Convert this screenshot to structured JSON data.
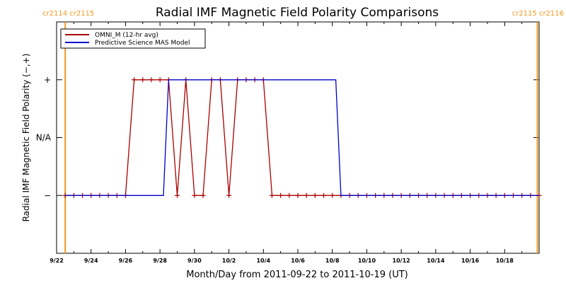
{
  "chart_data": {
    "type": "line",
    "title": "Radial IMF Magnetic Field Polarity Comparisons",
    "xlabel": "Month/Day from 2011-09-22 to 2011-10-19 (UT)",
    "ylabel": "Radial IMF Magnetic Field Polarity (−,+)",
    "x_range_days": [
      0,
      28
    ],
    "ylim": [
      -2,
      2
    ],
    "y_ticks": [
      {
        "value": 1,
        "label": "+"
      },
      {
        "value": 0,
        "label": "N/A"
      },
      {
        "value": -1,
        "label": "−"
      }
    ],
    "x_ticks": [
      {
        "day": 0,
        "label": "9/22"
      },
      {
        "day": 2,
        "label": "9/24"
      },
      {
        "day": 4,
        "label": "9/26"
      },
      {
        "day": 6,
        "label": "9/28"
      },
      {
        "day": 8,
        "label": "9/30"
      },
      {
        "day": 10,
        "label": "10/2"
      },
      {
        "day": 12,
        "label": "10/4"
      },
      {
        "day": 14,
        "label": "10/6"
      },
      {
        "day": 16,
        "label": "10/8"
      },
      {
        "day": 18,
        "label": "10/10"
      },
      {
        "day": 20,
        "label": "10/12"
      },
      {
        "day": 22,
        "label": "10/14"
      },
      {
        "day": 24,
        "label": "10/16"
      },
      {
        "day": 26,
        "label": "10/18"
      }
    ],
    "carrington_markers": [
      {
        "day": 0.5,
        "label": "cr2114 cr2115",
        "color": "#ee9922"
      },
      {
        "day": 27.9,
        "label": "cr2115 cr2116",
        "color": "#ee9922"
      }
    ],
    "legend_position": "top-left",
    "series": [
      {
        "name": "OMNI_M (12-hr avg)",
        "color": "#aa0000",
        "marker": "plus",
        "points": [
          [
            0.5,
            -1
          ],
          [
            1.0,
            -1
          ],
          [
            1.5,
            -1
          ],
          [
            2.0,
            -1
          ],
          [
            2.5,
            -1
          ],
          [
            3.0,
            -1
          ],
          [
            3.5,
            -1
          ],
          [
            4.0,
            -1
          ],
          [
            4.5,
            1
          ],
          [
            5.0,
            1
          ],
          [
            5.5,
            1
          ],
          [
            6.0,
            1
          ],
          [
            6.5,
            1
          ],
          [
            7.0,
            -1
          ],
          [
            7.5,
            1
          ],
          [
            8.0,
            -1
          ],
          [
            8.5,
            -1
          ],
          [
            9.0,
            1
          ],
          [
            9.5,
            1
          ],
          [
            10.0,
            -1
          ],
          [
            10.5,
            1
          ],
          [
            11.0,
            1
          ],
          [
            11.5,
            1
          ],
          [
            12.0,
            1
          ],
          [
            12.5,
            -1
          ],
          [
            13.0,
            -1
          ],
          [
            13.5,
            -1
          ],
          [
            14.0,
            -1
          ],
          [
            14.5,
            -1
          ],
          [
            15.0,
            -1
          ],
          [
            15.5,
            -1
          ],
          [
            16.0,
            -1
          ],
          [
            16.5,
            -1
          ],
          [
            17.0,
            -1
          ],
          [
            17.5,
            -1
          ],
          [
            18.0,
            -1
          ],
          [
            18.5,
            -1
          ],
          [
            19.0,
            -1
          ],
          [
            19.5,
            -1
          ],
          [
            20.0,
            -1
          ],
          [
            20.5,
            -1
          ],
          [
            21.0,
            -1
          ],
          [
            21.5,
            -1
          ],
          [
            22.0,
            -1
          ],
          [
            22.5,
            -1
          ],
          [
            23.0,
            -1
          ],
          [
            23.5,
            -1
          ],
          [
            24.0,
            -1
          ],
          [
            24.5,
            -1
          ],
          [
            25.0,
            -1
          ],
          [
            25.5,
            -1
          ],
          [
            26.0,
            -1
          ],
          [
            26.5,
            -1
          ],
          [
            27.0,
            -1
          ],
          [
            27.5,
            -1
          ],
          [
            28.0,
            -1
          ]
        ]
      },
      {
        "name": "Predictive Science MAS Model",
        "color": "#0000cc",
        "marker": "none",
        "points": [
          [
            0.5,
            -1
          ],
          [
            6.2,
            -1
          ],
          [
            6.5,
            1
          ],
          [
            16.2,
            1
          ],
          [
            16.5,
            -1
          ],
          [
            28.0,
            -1
          ]
        ]
      }
    ]
  }
}
